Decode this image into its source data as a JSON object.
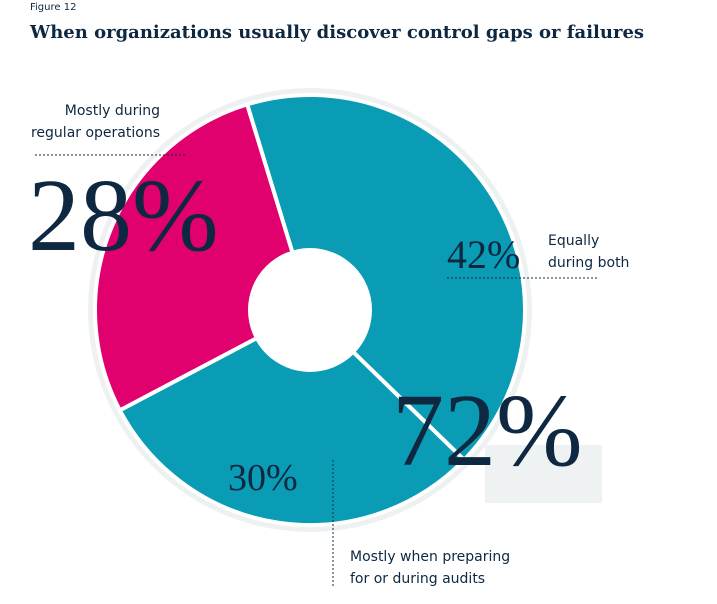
{
  "figure_label": "Figure 12",
  "chart_data": {
    "type": "pie",
    "title": "When organizations usually discover control gaps or failures",
    "categories": [
      "Equally during both",
      "Mostly when preparing for or during audits",
      "Mostly during regular operations"
    ],
    "values": [
      42,
      30,
      28
    ],
    "value_labels": [
      "42%",
      "30%",
      "28%"
    ],
    "colors": [
      "#0a9bb5",
      "#0a9bb5",
      "#e0006e"
    ],
    "annotation": "72%"
  }
}
